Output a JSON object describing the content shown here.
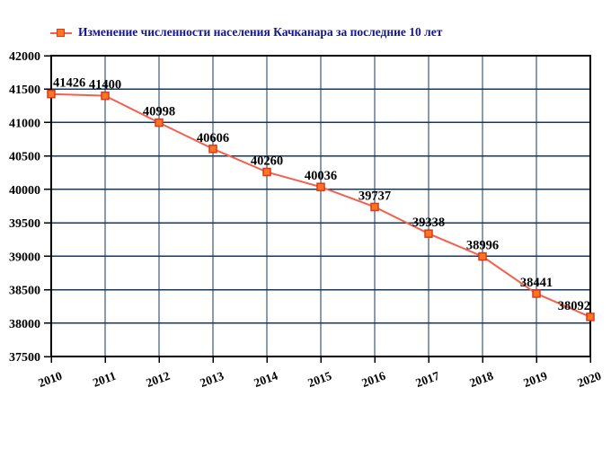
{
  "chart_data": {
    "type": "line",
    "title": "Изменение численности населения Качканара за последние 10 лет",
    "categories": [
      "2010",
      "2011",
      "2012",
      "2013",
      "2014",
      "2015",
      "2016",
      "2017",
      "2018",
      "2019",
      "2020"
    ],
    "values": [
      41426,
      41400,
      40998,
      40606,
      40260,
      40036,
      39737,
      39338,
      38996,
      38441,
      38092
    ],
    "xlabel": "",
    "ylabel": "",
    "ylim": [
      37500,
      42000
    ],
    "ytick_step": 500,
    "grid": true,
    "legend_position": "top-left",
    "point_labels": [
      "41426",
      "41400",
      "40998",
      "40606",
      "40260",
      "40036",
      "39737",
      "39338",
      "38996",
      "38441",
      "38092"
    ]
  },
  "colors": {
    "line": "#f4604d",
    "marker_fill": "#ff7420",
    "marker_stroke": "#da3a1c",
    "grid": "#17375d",
    "axis": "#000000",
    "title": "#14148c",
    "tick_label": "#000000",
    "point_label": "#000000",
    "background": "#ffffff"
  }
}
